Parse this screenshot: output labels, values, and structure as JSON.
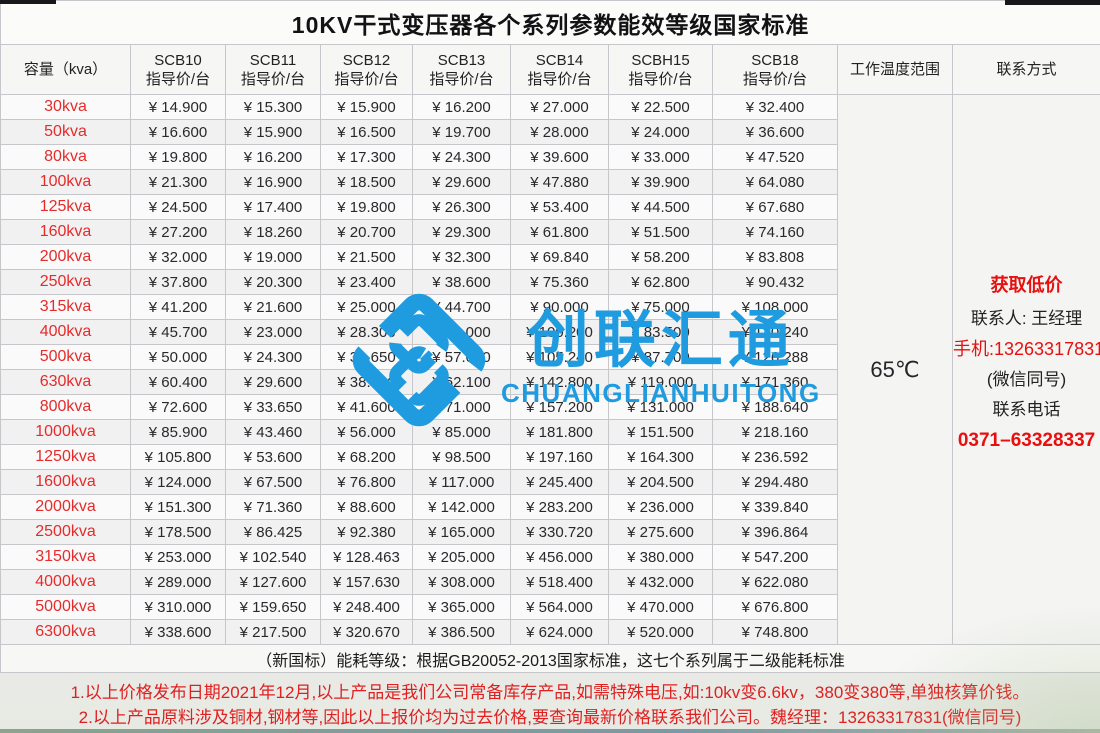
{
  "title": "10KV干式变压器各个系列参数能效等级国家标准",
  "table": {
    "currency_prefix": "¥ ",
    "capacity_header": "容量（kva）",
    "series_headers": [
      {
        "name": "SCB10",
        "sub": "指导价/台"
      },
      {
        "name": "SCB11",
        "sub": "指导价/台"
      },
      {
        "name": "SCB12",
        "sub": "指导价/台"
      },
      {
        "name": "SCB13",
        "sub": "指导价/台"
      },
      {
        "name": "SCB14",
        "sub": "指导价/台"
      },
      {
        "name": "SCBH15",
        "sub": "指导价/台"
      },
      {
        "name": "SCB18",
        "sub": "指导价/台"
      }
    ],
    "temp_header": "工作温度范围",
    "contact_header": "联系方式",
    "temperature": "65℃",
    "rows": [
      {
        "capacity": "30kva",
        "prices": [
          "14.900",
          "15.300",
          "15.900",
          "16.200",
          "27.000",
          "22.500",
          "32.400"
        ]
      },
      {
        "capacity": "50kva",
        "prices": [
          "16.600",
          "15.900",
          "16.500",
          "19.700",
          "28.000",
          "24.000",
          "36.600"
        ]
      },
      {
        "capacity": "80kva",
        "prices": [
          "19.800",
          "16.200",
          "17.300",
          "24.300",
          "39.600",
          "33.000",
          "47.520"
        ]
      },
      {
        "capacity": "100kva",
        "prices": [
          "21.300",
          "16.900",
          "18.500",
          "29.600",
          "47.880",
          "39.900",
          "64.080"
        ]
      },
      {
        "capacity": "125kva",
        "prices": [
          "24.500",
          "17.400",
          "19.800",
          "26.300",
          "53.400",
          "44.500",
          "67.680"
        ]
      },
      {
        "capacity": "160kva",
        "prices": [
          "27.200",
          "18.260",
          "20.700",
          "29.300",
          "61.800",
          "51.500",
          "74.160"
        ]
      },
      {
        "capacity": "200kva",
        "prices": [
          "32.000",
          "19.000",
          "21.500",
          "32.300",
          "69.840",
          "58.200",
          "83.808"
        ]
      },
      {
        "capacity": "250kva",
        "prices": [
          "37.800",
          "20.300",
          "23.400",
          "38.600",
          "75.360",
          "62.800",
          "90.432"
        ]
      },
      {
        "capacity": "315kva",
        "prices": [
          "41.200",
          "21.600",
          "25.000",
          "44.700",
          "90.000",
          "75.000",
          "108.000"
        ]
      },
      {
        "capacity": "400kva",
        "prices": [
          "45.700",
          "23.000",
          "28.300",
          "48.000",
          "100.200",
          "83.500",
          "120.240"
        ]
      },
      {
        "capacity": "500kva",
        "prices": [
          "50.000",
          "24.300",
          "30.650",
          "57.000",
          "105.240",
          "87.700",
          "126.288"
        ]
      },
      {
        "capacity": "630kva",
        "prices": [
          "60.400",
          "29.600",
          "38.630",
          "62.100",
          "142.800",
          "119.000",
          "171.360"
        ]
      },
      {
        "capacity": "800kva",
        "prices": [
          "72.600",
          "33.650",
          "41.600",
          "71.000",
          "157.200",
          "131.000",
          "188.640"
        ]
      },
      {
        "capacity": "1000kva",
        "prices": [
          "85.900",
          "43.460",
          "56.000",
          "85.000",
          "181.800",
          "151.500",
          "218.160"
        ]
      },
      {
        "capacity": "1250kva",
        "prices": [
          "105.800",
          "53.600",
          "68.200",
          "98.500",
          "197.160",
          "164.300",
          "236.592"
        ]
      },
      {
        "capacity": "1600kva",
        "prices": [
          "124.000",
          "67.500",
          "76.800",
          "117.000",
          "245.400",
          "204.500",
          "294.480"
        ]
      },
      {
        "capacity": "2000kva",
        "prices": [
          "151.300",
          "71.360",
          "88.600",
          "142.000",
          "283.200",
          "236.000",
          "339.840"
        ]
      },
      {
        "capacity": "2500kva",
        "prices": [
          "178.500",
          "86.425",
          "92.380",
          "165.000",
          "330.720",
          "275.600",
          "396.864"
        ]
      },
      {
        "capacity": "3150kva",
        "prices": [
          "253.000",
          "102.540",
          "128.463",
          "205.000",
          "456.000",
          "380.000",
          "547.200"
        ]
      },
      {
        "capacity": "4000kva",
        "prices": [
          "289.000",
          "127.600",
          "157.630",
          "308.000",
          "518.400",
          "432.000",
          "622.080"
        ]
      },
      {
        "capacity": "5000kva",
        "prices": [
          "310.000",
          "159.650",
          "248.400",
          "365.000",
          "564.000",
          "470.000",
          "676.800"
        ]
      },
      {
        "capacity": "6300kva",
        "prices": [
          "338.600",
          "217.500",
          "320.670",
          "386.500",
          "624.000",
          "520.000",
          "748.800"
        ]
      }
    ],
    "footnote": "（新国标）能耗等级：根据GB20052-2013国家标准，这七个系列属于二级能耗标准"
  },
  "contact": {
    "promo": "获取低价",
    "person": "联系人: 王经理",
    "mobile": "手机:13263317831",
    "wechat_note": "(微信同号)",
    "phone_label": "联系电话",
    "phone": "0371–63328337"
  },
  "watermark": {
    "cn": "创联汇通",
    "en": "CHUANGLIANHUITONG"
  },
  "notes": {
    "line1": "1.以上价格发布日期2021年12月,以上产品是我们公司常备库存产品,如需特殊电压,如:10kv变6.6kv，380变380等,单独核算价钱。",
    "line2": "2.以上产品原料涉及铜材,钢材等,因此以上报价均为过去价格,要查询最新价格联系我们公司。魏经理：13263317831(微信同号)"
  },
  "colors": {
    "capacity_red": "#e62b2b",
    "contact_red": "#e80f0f",
    "note_red": "#e01f1f",
    "watermark_blue": "#1f9be0",
    "price_text": "#29292c",
    "border": "#c7c7cb"
  }
}
